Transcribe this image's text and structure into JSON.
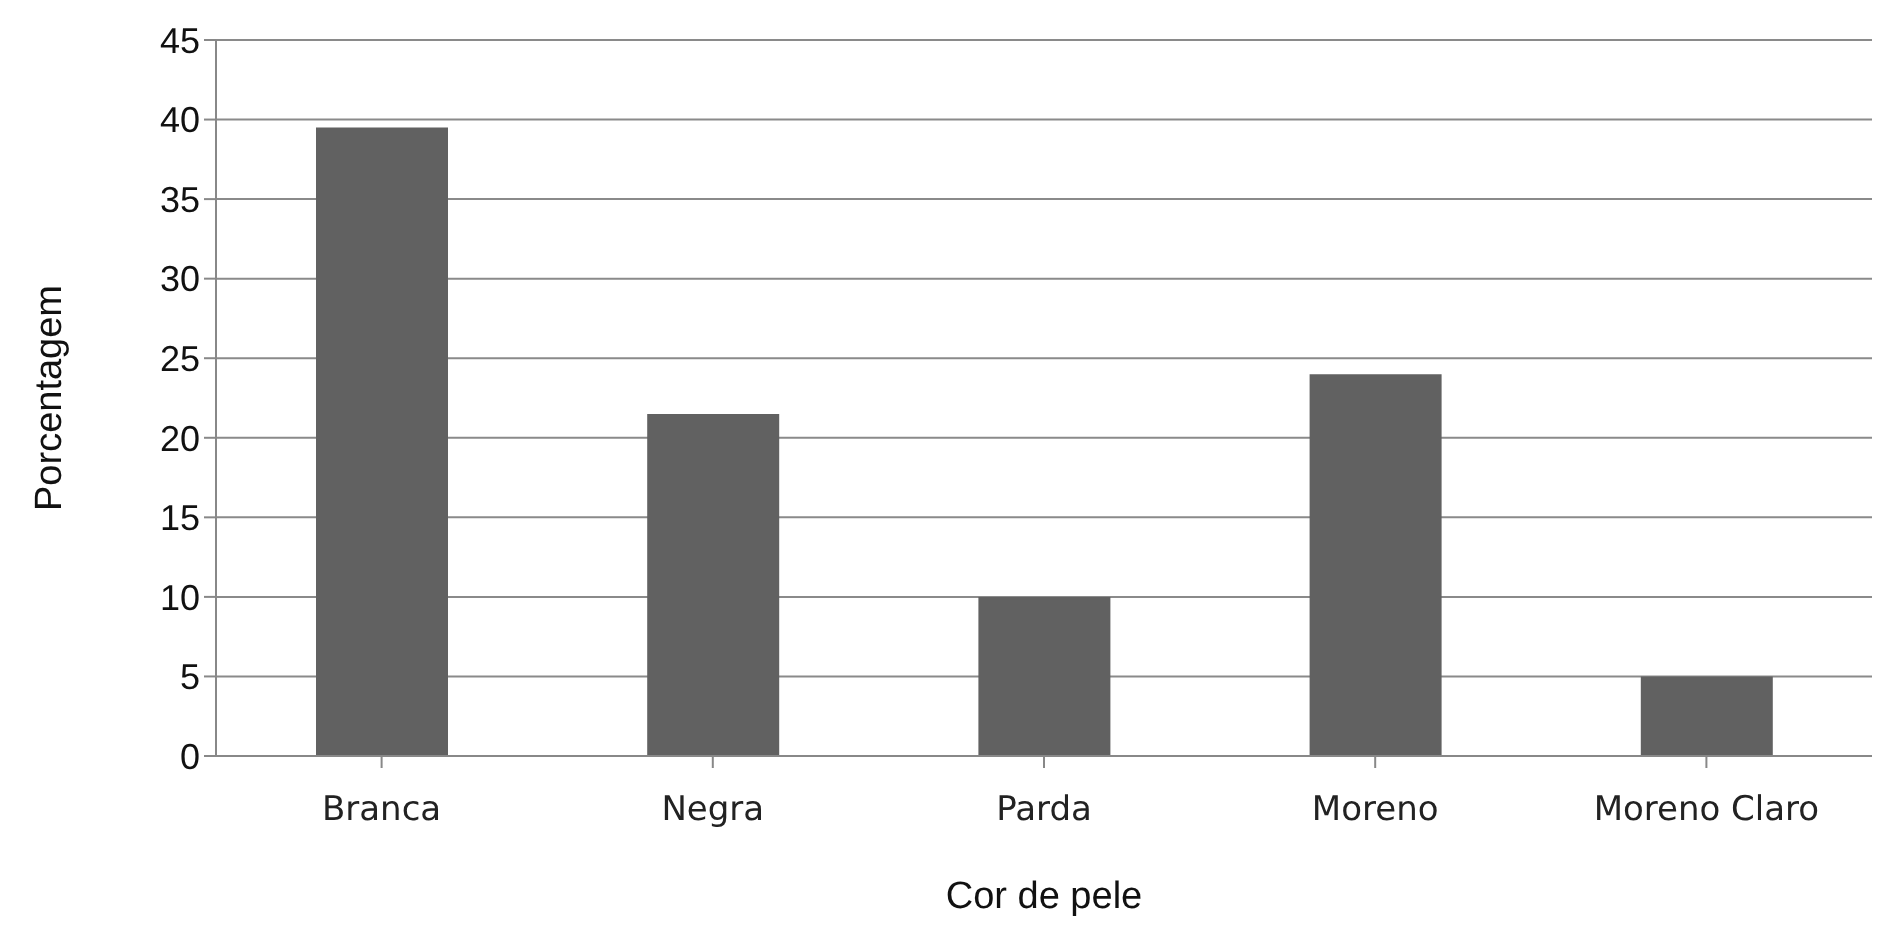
{
  "chart_data": {
    "type": "bar",
    "xlabel": "Cor de pele",
    "ylabel": "Porcentagem",
    "categories": [
      "Branca",
      "Negra",
      "Parda",
      "Moreno",
      "Moreno Claro"
    ],
    "values": [
      39.5,
      21.5,
      10,
      24,
      5
    ],
    "color": "#616161",
    "ylim": [
      0,
      45
    ],
    "yticks": [
      0,
      5,
      10,
      15,
      20,
      25,
      30,
      35,
      40,
      45
    ],
    "grid": "y"
  }
}
